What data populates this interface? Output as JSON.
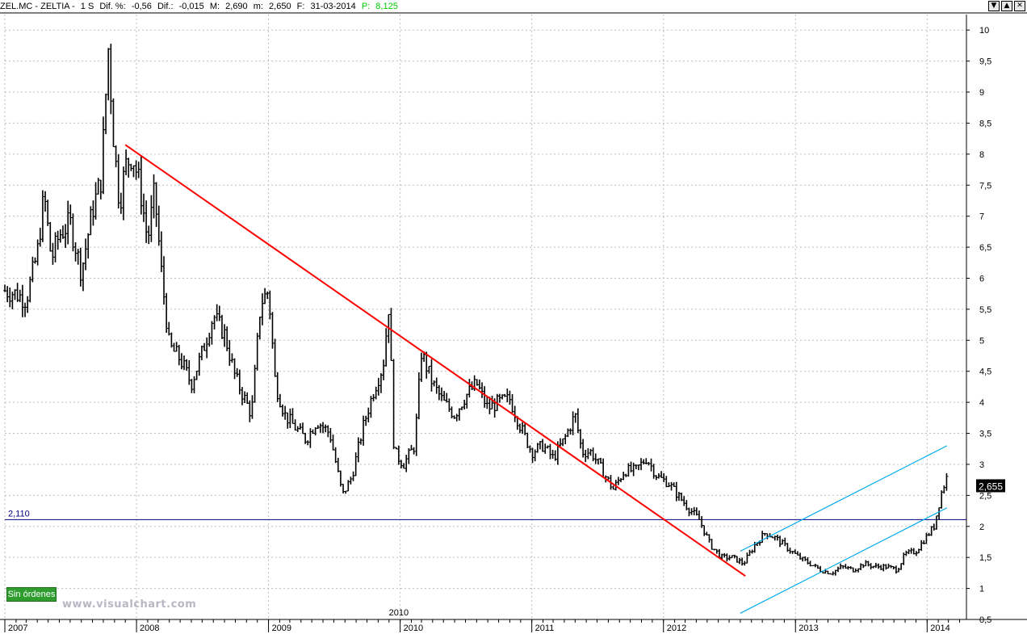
{
  "header": {
    "symbol": "ZEL.MC - ZELTIA -",
    "timeframe": "1 S",
    "dif_pct_label": "Dif. %:",
    "dif_pct": "-0,56",
    "dif_label": "Dif.:",
    "dif": "-0,015",
    "high_label": "M:",
    "high": "2,690",
    "low_label": "m:",
    "low": "2,650",
    "date_label": "F:",
    "date": "31-03-2014",
    "p_label": "P:",
    "p_value": "8,125",
    "p_color": "#00cc00"
  },
  "window_buttons": [
    "▼",
    "▲",
    "✕"
  ],
  "badge_orders": "Sin órdenes",
  "watermark": "www.visualchart.com",
  "chart_data": {
    "type": "bar",
    "x": [
      "2007-01",
      "2014-03"
    ],
    "xlim": [
      "2007-01-01",
      "2014-04-20"
    ],
    "ylim": [
      0.5,
      10.25
    ],
    "y_ticks": [
      "10",
      "9,5",
      "9",
      "8,5",
      "8",
      "7,5",
      "7",
      "6,5",
      "6",
      "5,5",
      "5",
      "4,5",
      "4",
      "3,5",
      "3",
      "2,5",
      "2",
      "1,5",
      "1",
      "0,5"
    ],
    "y_tick_values": [
      10,
      9.5,
      9,
      8.5,
      8,
      7.5,
      7,
      6.5,
      6,
      5.5,
      5,
      4.5,
      4,
      3.5,
      3,
      2.5,
      2,
      1.5,
      1,
      0.5
    ],
    "x_year_ticks": [
      "2007",
      "2008",
      "2009",
      "2010",
      "2011",
      "2012",
      "2013",
      "2014"
    ],
    "x_year_values": [
      "2007-01-01",
      "2008-01-01",
      "2009-01-01",
      "2010-01-01",
      "2011-01-01",
      "2012-01-01",
      "2013-01-01",
      "2014-01-01"
    ],
    "x_extra_label": "2010",
    "grid": true,
    "last_price_label": "2,655",
    "last_price": 2.655,
    "horizontal_line": {
      "label": "2,110",
      "value": 2.11,
      "color": "#000080"
    },
    "trendline_down": {
      "color": "#ff0000",
      "from": [
        "2007-12-01",
        8.15
      ],
      "to": [
        "2012-08-15",
        1.2
      ]
    },
    "channel_upper": {
      "color": "#00aaee",
      "from": [
        "2012-08-01",
        1.6
      ],
      "to": [
        "2014-02-25",
        3.3
      ]
    },
    "channel_lower": {
      "color": "#00aaee",
      "from": [
        "2012-08-01",
        0.6
      ],
      "to": [
        "2014-02-25",
        2.3
      ]
    },
    "close_series": [
      [
        "2007-01-01",
        5.8
      ],
      [
        "2007-02-01",
        5.75
      ],
      [
        "2007-03-01",
        5.65
      ],
      [
        "2007-04-01",
        6.4
      ],
      [
        "2007-04-20",
        7.35
      ],
      [
        "2007-05-10",
        6.3
      ],
      [
        "2007-06-01",
        6.7
      ],
      [
        "2007-07-01",
        6.9
      ],
      [
        "2007-08-01",
        6.1
      ],
      [
        "2007-09-01",
        7.1
      ],
      [
        "2007-09-25",
        7.6
      ],
      [
        "2007-10-15",
        9.7
      ],
      [
        "2007-10-30",
        8.2
      ],
      [
        "2007-11-15",
        7.2
      ],
      [
        "2007-12-01",
        7.8
      ],
      [
        "2007-12-20",
        8.0
      ],
      [
        "2008-01-10",
        7.5
      ],
      [
        "2008-02-01",
        6.6
      ],
      [
        "2008-02-20",
        7.4
      ],
      [
        "2008-03-10",
        6.1
      ],
      [
        "2008-04-01",
        4.9
      ],
      [
        "2008-05-01",
        4.7
      ],
      [
        "2008-06-01",
        4.3
      ],
      [
        "2008-07-01",
        4.8
      ],
      [
        "2008-08-01",
        5.4
      ],
      [
        "2008-09-01",
        5.1
      ],
      [
        "2008-10-01",
        4.4
      ],
      [
        "2008-11-15",
        3.8
      ],
      [
        "2008-12-10",
        5.6
      ],
      [
        "2009-01-01",
        5.8
      ],
      [
        "2009-01-20",
        4.3
      ],
      [
        "2009-02-15",
        3.8
      ],
      [
        "2009-03-15",
        3.6
      ],
      [
        "2009-04-15",
        3.4
      ],
      [
        "2009-05-15",
        3.7
      ],
      [
        "2009-06-20",
        3.5
      ],
      [
        "2009-07-25",
        2.5
      ],
      [
        "2009-08-20",
        2.8
      ],
      [
        "2009-09-20",
        3.6
      ],
      [
        "2009-10-20",
        4.2
      ],
      [
        "2009-11-15",
        4.6
      ],
      [
        "2009-12-01",
        5.6
      ],
      [
        "2009-12-15",
        3.2
      ],
      [
        "2010-01-10",
        3.0
      ],
      [
        "2010-02-10",
        3.3
      ],
      [
        "2010-03-01",
        4.8
      ],
      [
        "2010-04-01",
        4.3
      ],
      [
        "2010-05-01",
        4.0
      ],
      [
        "2010-06-01",
        3.8
      ],
      [
        "2010-07-01",
        4.1
      ],
      [
        "2010-08-01",
        4.3
      ],
      [
        "2010-09-01",
        3.9
      ],
      [
        "2010-10-01",
        4.0
      ],
      [
        "2010-11-01",
        4.05
      ],
      [
        "2010-12-01",
        3.6
      ],
      [
        "2011-01-01",
        3.2
      ],
      [
        "2011-02-01",
        3.3
      ],
      [
        "2011-03-01",
        3.1
      ],
      [
        "2011-04-01",
        3.4
      ],
      [
        "2011-05-01",
        3.8
      ],
      [
        "2011-05-20",
        3.2
      ],
      [
        "2011-06-15",
        3.2
      ],
      [
        "2011-07-15",
        2.9
      ],
      [
        "2011-08-15",
        2.6
      ],
      [
        "2011-09-15",
        2.9
      ],
      [
        "2011-10-15",
        2.9
      ],
      [
        "2011-11-15",
        3.1
      ],
      [
        "2011-12-15",
        2.8
      ],
      [
        "2012-01-15",
        2.7
      ],
      [
        "2012-02-10",
        2.5
      ],
      [
        "2012-03-10",
        2.3
      ],
      [
        "2012-04-10",
        2.1
      ],
      [
        "2012-05-10",
        1.7
      ],
      [
        "2012-06-10",
        1.5
      ],
      [
        "2012-07-10",
        1.5
      ],
      [
        "2012-08-10",
        1.4
      ],
      [
        "2012-09-10",
        1.7
      ],
      [
        "2012-10-10",
        1.9
      ],
      [
        "2012-11-10",
        1.8
      ],
      [
        "2012-12-10",
        1.65
      ],
      [
        "2013-01-10",
        1.5
      ],
      [
        "2013-02-10",
        1.4
      ],
      [
        "2013-03-10",
        1.3
      ],
      [
        "2013-04-10",
        1.25
      ],
      [
        "2013-05-10",
        1.35
      ],
      [
        "2013-06-10",
        1.3
      ],
      [
        "2013-07-10",
        1.4
      ],
      [
        "2013-08-10",
        1.35
      ],
      [
        "2013-09-10",
        1.35
      ],
      [
        "2013-10-10",
        1.3
      ],
      [
        "2013-11-01",
        1.55
      ],
      [
        "2013-12-01",
        1.6
      ],
      [
        "2014-01-01",
        1.85
      ],
      [
        "2014-01-20",
        2.0
      ],
      [
        "2014-02-10",
        2.55
      ],
      [
        "2014-02-25",
        2.8
      ]
    ],
    "data_color": "#000000"
  }
}
